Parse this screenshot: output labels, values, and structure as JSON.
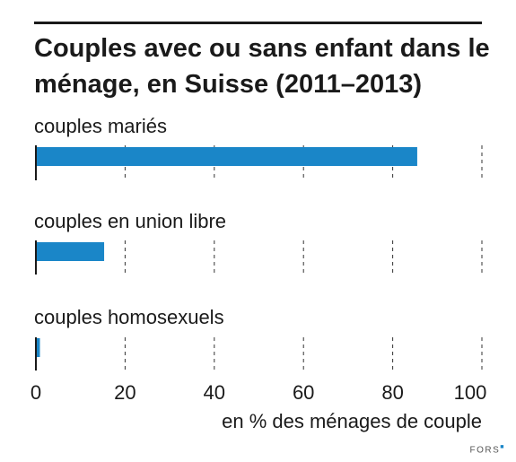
{
  "chart_data": {
    "type": "bar",
    "orientation": "horizontal",
    "title": "Couples avec ou sans enfant dans le ménage, en Suisse (2011–2013)",
    "categories": [
      "couples mariés",
      "couples en union libre",
      "couples homosexuels"
    ],
    "values": [
      85.5,
      15.3,
      0.9
    ],
    "xlabel": "en % des ménages de couple",
    "xlim": [
      0,
      100
    ],
    "x_ticks": [
      "0",
      "20",
      "40",
      "60",
      "80",
      "100"
    ],
    "grid": "vertical dashed",
    "bar_color": "#1a86c8"
  },
  "logo": {
    "text": "FORS"
  }
}
